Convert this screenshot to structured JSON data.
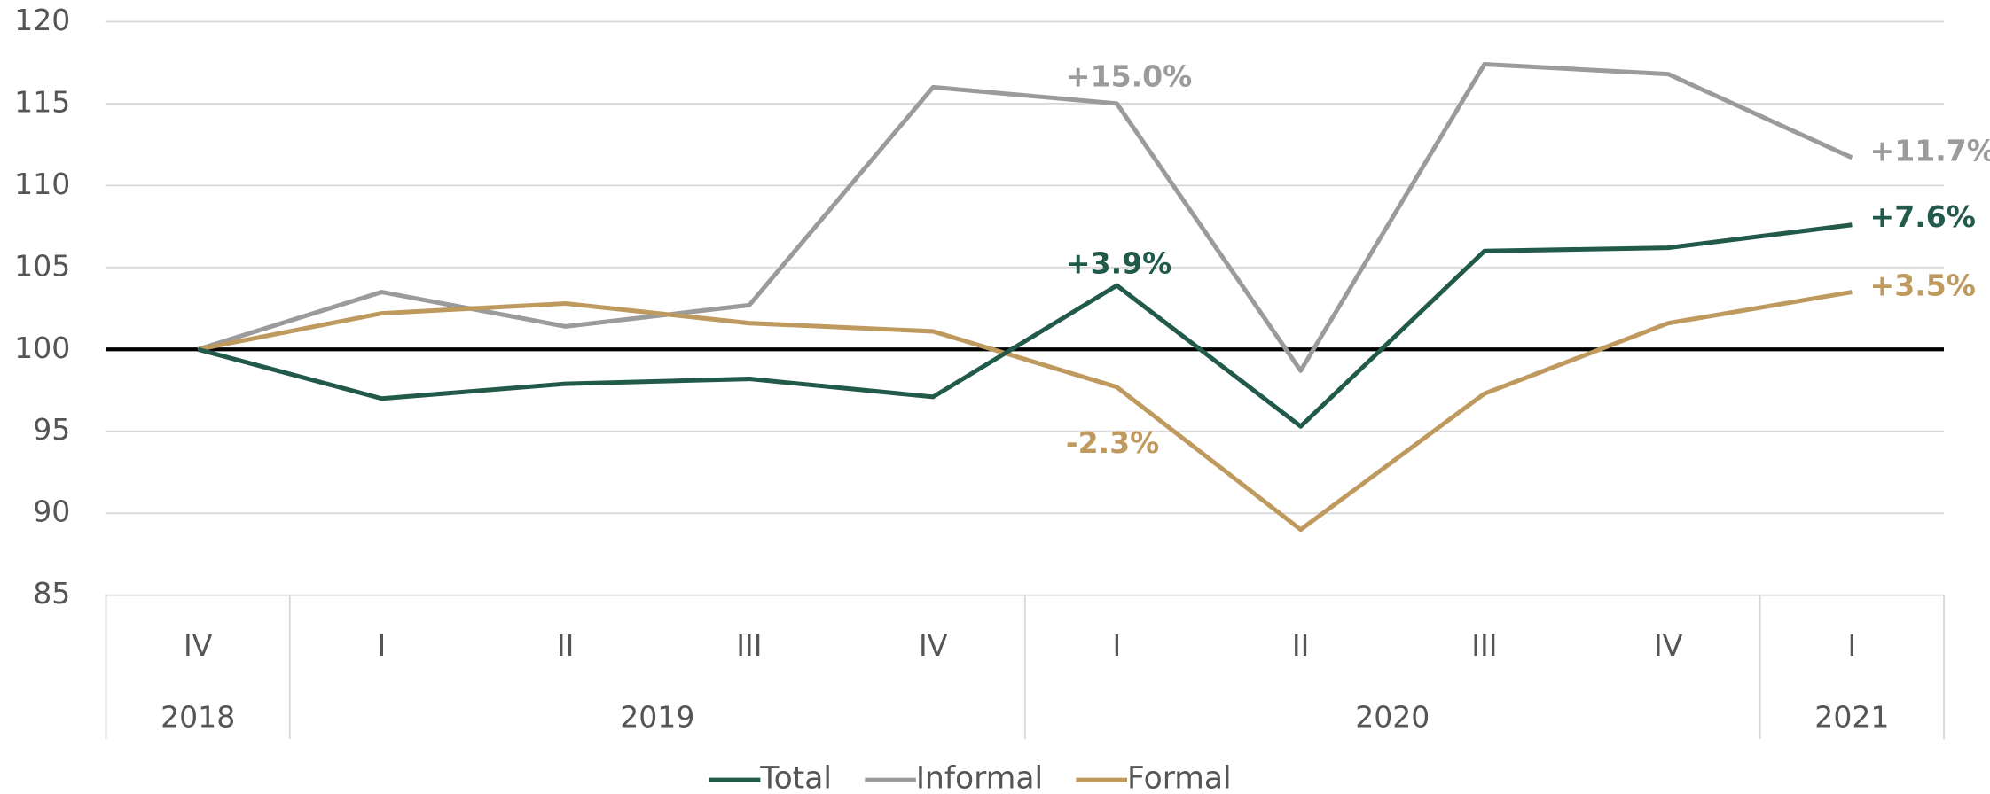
{
  "chart_data": {
    "type": "line",
    "categories": [
      "IV",
      "I",
      "II",
      "III",
      "IV",
      "I",
      "II",
      "III",
      "IV",
      "I"
    ],
    "years": [
      "2018",
      "2019",
      "2019",
      "2019",
      "2019",
      "2020",
      "2020",
      "2020",
      "2020",
      "2021"
    ],
    "series": [
      {
        "name": "Total",
        "color": "#215a4a",
        "values": [
          100,
          97.0,
          97.9,
          98.2,
          97.1,
          103.9,
          95.3,
          106.0,
          106.2,
          107.6
        ]
      },
      {
        "name": "Informal",
        "color": "#9b9b9b",
        "values": [
          100,
          103.5,
          101.4,
          102.7,
          116.0,
          115.0,
          98.7,
          117.4,
          116.8,
          111.7
        ]
      },
      {
        "name": "Formal",
        "color": "#bf9a5f",
        "values": [
          100,
          102.2,
          102.8,
          101.6,
          101.1,
          97.7,
          89.0,
          97.3,
          101.6,
          103.5
        ]
      }
    ],
    "annotations": [
      {
        "text": "+15.0%",
        "series": 1,
        "index": 5
      },
      {
        "text": "+3.9%",
        "series": 0,
        "index": 5
      },
      {
        "text": "-2.3%",
        "series": 2,
        "index": 5
      },
      {
        "text": "+11.7%",
        "series": 1,
        "index": 9
      },
      {
        "text": "+7.6%",
        "series": 0,
        "index": 9
      },
      {
        "text": "+3.5%",
        "series": 2,
        "index": 9
      }
    ],
    "reference_line": 100,
    "ylim": [
      85,
      120
    ],
    "yticks": [
      85,
      90,
      95,
      100,
      105,
      110,
      115,
      120
    ],
    "grid": true,
    "legend": "bottom"
  }
}
